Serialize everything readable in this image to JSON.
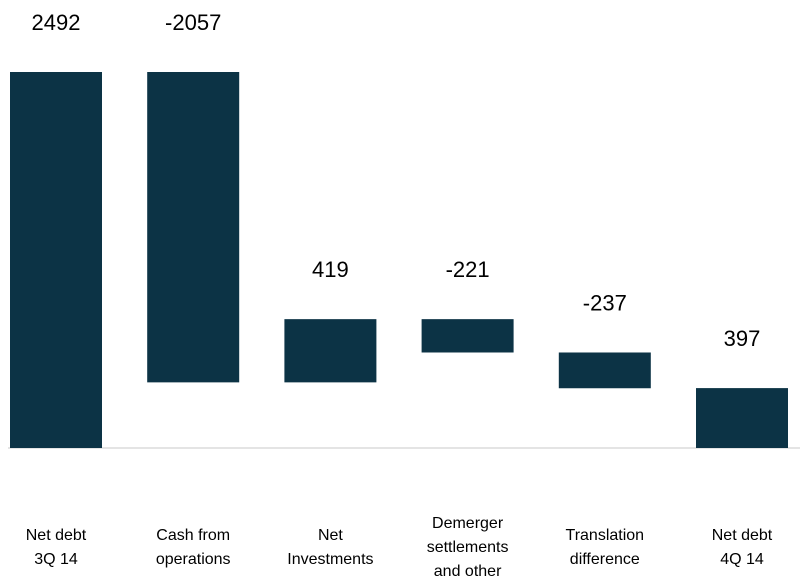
{
  "chart_data": {
    "type": "waterfall",
    "categories": [
      [
        "Net debt",
        "3Q 14"
      ],
      [
        "Cash from",
        "operations"
      ],
      [
        "Net",
        "Investments"
      ],
      [
        "Demerger",
        "settlements",
        "and other"
      ],
      [
        "Translation",
        "difference"
      ],
      [
        "Net debt",
        "4Q 14"
      ]
    ],
    "values": [
      2492,
      -2057,
      419,
      -221,
      -237,
      397
    ],
    "color": "#0c3345"
  }
}
